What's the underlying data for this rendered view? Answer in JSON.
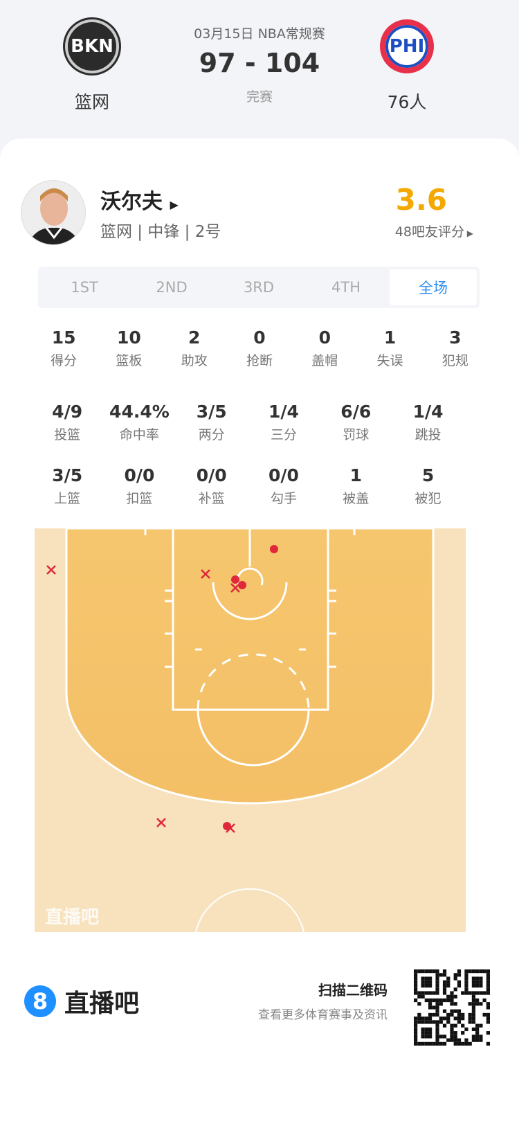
{
  "game": {
    "date_league": "03月15日 NBA常规赛",
    "score": "97 - 104",
    "status": "完赛",
    "home": {
      "abbr": "BKN",
      "name": "篮网"
    },
    "away": {
      "abbr": "PHI",
      "name": "76人"
    }
  },
  "player": {
    "name": "沃尔夫",
    "info": "篮网 | 中锋 | 2号",
    "rating": "3.6",
    "rating_label": "48吧友评分"
  },
  "tabs": [
    "1ST",
    "2ND",
    "3RD",
    "4TH",
    "全场"
  ],
  "active_tab": "全场",
  "stats_rows": [
    [
      {
        "v": "15",
        "l": "得分"
      },
      {
        "v": "10",
        "l": "篮板"
      },
      {
        "v": "2",
        "l": "助攻"
      },
      {
        "v": "0",
        "l": "抢断"
      },
      {
        "v": "0",
        "l": "盖帽"
      },
      {
        "v": "1",
        "l": "失误"
      },
      {
        "v": "3",
        "l": "犯规"
      }
    ],
    [
      {
        "v": "4/9",
        "l": "投篮"
      },
      {
        "v": "44.4%",
        "l": "命中率"
      },
      {
        "v": "3/5",
        "l": "两分"
      },
      {
        "v": "1/4",
        "l": "三分"
      },
      {
        "v": "6/6",
        "l": "罚球"
      },
      {
        "v": "1/4",
        "l": "跳投"
      }
    ],
    [
      {
        "v": "3/5",
        "l": "上篮"
      },
      {
        "v": "0/0",
        "l": "扣篮"
      },
      {
        "v": "0/0",
        "l": "补篮"
      },
      {
        "v": "0/0",
        "l": "勾手"
      },
      {
        "v": "1",
        "l": "被盖"
      },
      {
        "v": "5",
        "l": "被犯"
      }
    ]
  ],
  "shot_chart": {
    "watermark": "直播吧",
    "made_color": "#e0283a",
    "missed_color": "#e0283a",
    "shots": [
      {
        "result": "made"
      },
      {
        "result": "made"
      },
      {
        "result": "made"
      },
      {
        "result": "made"
      },
      {
        "result": "missed"
      },
      {
        "result": "missed"
      },
      {
        "result": "missed"
      },
      {
        "result": "missed"
      },
      {
        "result": "missed"
      }
    ]
  },
  "footer": {
    "brand_num": "8",
    "brand": "直播吧",
    "scan_title": "扫描二维码",
    "scan_sub": "查看更多体育赛事及资讯"
  },
  "colors": {
    "rating": "#f5a800",
    "active_tab": "#2b8ff0",
    "court_inner": "#f5c46c",
    "court_outer": "#f8e2bd"
  }
}
